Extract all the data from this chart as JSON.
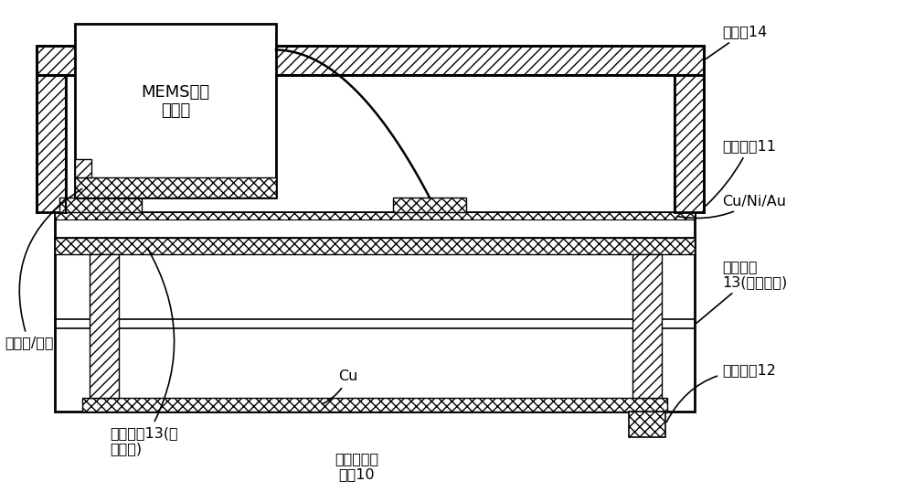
{
  "bg_color": "#ffffff",
  "lc": "#000000",
  "labels": {
    "metal_cap": "金属盖14",
    "inner_pad": "内部焉盖11",
    "cu_ni_au": "Cu/Ni/Au",
    "inner_circuit_via": "内部电路\n13(垂直通孔)",
    "outer_pad": "外部焉盖12",
    "chip_paste": "贴片胶/焉料",
    "inner_circuit_surface": "内部电路13(表\n面电路)",
    "cu_label": "Cu",
    "substrate": "氮化硅陶瓷\n基坤10",
    "mems_chip": "MEMS传感\n器芯片"
  },
  "figsize": [
    10.0,
    5.5
  ],
  "dpi": 100
}
